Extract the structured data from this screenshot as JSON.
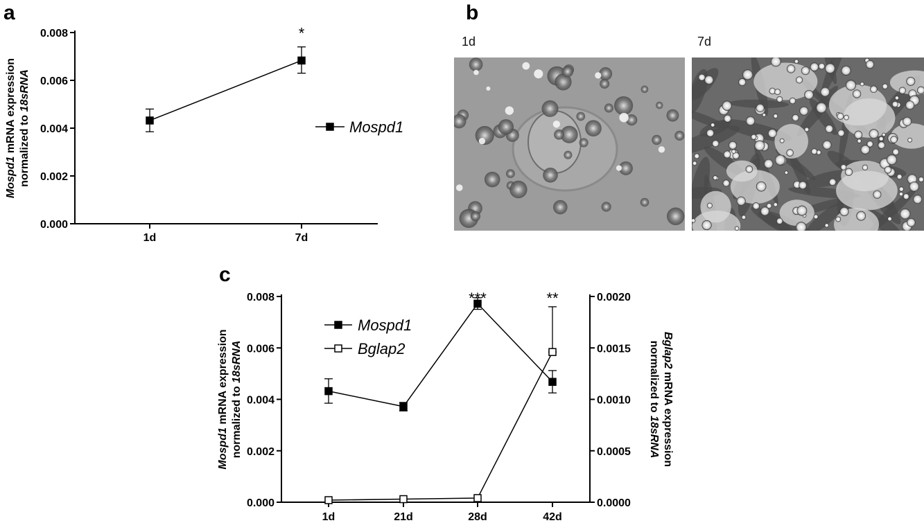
{
  "panels": {
    "a": {
      "letter": "a"
    },
    "b": {
      "letter": "b"
    },
    "c": {
      "letter": "c"
    }
  },
  "micrographs": {
    "left_label": "1d",
    "right_label": "7d"
  },
  "chart_data": [
    {
      "type": "line",
      "panel": "a",
      "categories": [
        "1d",
        "7d"
      ],
      "ylim": [
        0,
        0.008
      ],
      "yticks": [
        "0.000",
        "0.002",
        "0.004",
        "0.006",
        "0.008"
      ],
      "ylabel": {
        "gene": "Mospd1",
        "rest": " mRNA expression",
        "line2_prefix": "normalized  to ",
        "line2_italic": "18sRNA"
      },
      "series": [
        {
          "name": "Mospd1",
          "marker": "filled-square",
          "values": [
            0.00432,
            0.00683
          ],
          "err_low": [
            0.00385,
            0.0063
          ],
          "err_high": [
            0.0048,
            0.0074
          ]
        }
      ],
      "annotations": [
        {
          "category": "7d",
          "text": "*"
        }
      ],
      "legend": "right"
    },
    {
      "type": "line",
      "panel": "c",
      "categories": [
        "1d",
        "21d",
        "28d",
        "42d"
      ],
      "ylim_left": [
        0,
        0.008
      ],
      "yticks_left": [
        "0.000",
        "0.002",
        "0.004",
        "0.006",
        "0.008"
      ],
      "ylim_right": [
        0,
        0.002
      ],
      "yticks_right": [
        "0.0000",
        "0.0005",
        "0.0010",
        "0.0015",
        "0.0020"
      ],
      "ylabel_left": {
        "gene": "Mospd1",
        "rest": " mRNA expression",
        "line2_prefix": "normalized  to ",
        "line2_italic": "18sRNA"
      },
      "ylabel_right": {
        "gene": "Bglap2",
        "rest": " mRNA expression",
        "line2_prefix": "normalized  to ",
        "line2_italic": "18sRNA"
      },
      "series": [
        {
          "name": "Mospd1",
          "axis": "left",
          "marker": "filled-square",
          "values": [
            0.00432,
            0.00372,
            0.00772,
            0.00468
          ],
          "err_low": [
            0.00385,
            0.00355,
            0.0075,
            0.00425
          ],
          "err_high": [
            0.0048,
            0.00388,
            0.00795,
            0.00512
          ]
        },
        {
          "name": "Bglap2",
          "axis": "right",
          "marker": "open-square",
          "values": [
            2e-05,
            3e-05,
            4e-05,
            0.00146
          ],
          "err_low": [
            2e-05,
            3e-05,
            4e-05,
            0.00146
          ],
          "err_high": [
            2e-05,
            3e-05,
            4e-05,
            0.0019
          ]
        }
      ],
      "annotations": [
        {
          "category": "28d",
          "text": "***"
        },
        {
          "category": "42d",
          "text": "**"
        }
      ],
      "legend": "top-left"
    }
  ]
}
